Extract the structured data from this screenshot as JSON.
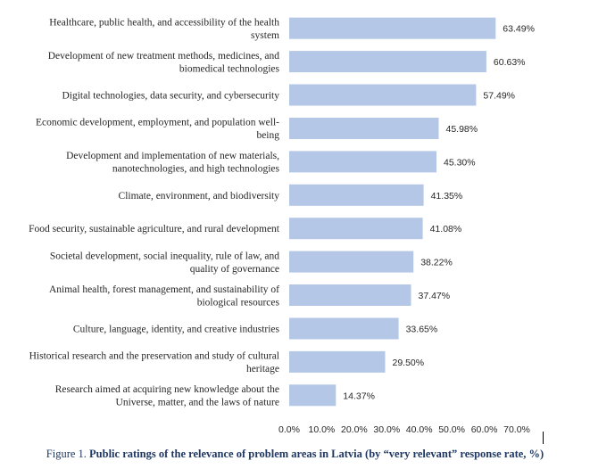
{
  "chart_data": {
    "type": "bar",
    "orientation": "horizontal",
    "categories": [
      [
        "Healthcare, public health, and accessibility of the health",
        "system"
      ],
      [
        "Development of new treatment methods, medicines, and",
        "biomedical technologies"
      ],
      [
        "Digital technologies, data security, and cybersecurity"
      ],
      [
        "Economic development, employment, and population well-",
        "being"
      ],
      [
        "Development and implementation of new materials,",
        "nanotechnologies, and high technologies"
      ],
      [
        "Climate, environment, and biodiversity"
      ],
      [
        "Food security, sustainable agriculture, and rural development"
      ],
      [
        "Societal development, social inequality, rule of law, and",
        "quality of governance"
      ],
      [
        "Animal health, forest management, and sustainability of",
        "biological resources"
      ],
      [
        "Culture, language, identity, and creative industries"
      ],
      [
        "Historical research and the preservation and study of cultural",
        "heritage"
      ],
      [
        "Research aimed at acquiring new knowledge about the",
        "Universe, matter, and the laws of nature"
      ]
    ],
    "values": [
      63.49,
      60.63,
      57.49,
      45.98,
      45.3,
      41.35,
      41.08,
      38.22,
      37.47,
      33.65,
      29.5,
      14.37
    ],
    "value_labels": [
      "63.49%",
      "60.63%",
      "57.49%",
      "45.98%",
      "45.30%",
      "41.35%",
      "41.08%",
      "38.22%",
      "37.47%",
      "33.65%",
      "29.50%",
      "14.37%"
    ],
    "xlim": [
      0,
      70
    ],
    "xticks": [
      "0.0%",
      "10.0%",
      "20.0%",
      "30.0%",
      "40.0%",
      "50.0%",
      "60.0%",
      "70.0%"
    ],
    "bar_color": "#b4c7e7",
    "grid": false,
    "legend": "none"
  },
  "caption": {
    "prefix": "Figure 1. ",
    "title": "Public ratings of the relevance of problem areas in Latvia (by “very relevant” response rate, %)"
  }
}
